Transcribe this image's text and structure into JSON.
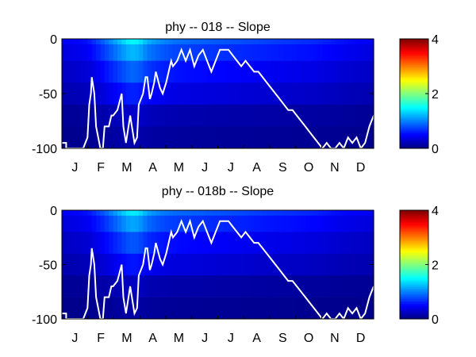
{
  "chart_data": [
    {
      "type": "heatmap",
      "title": "phy -- 018 -- Slope",
      "xlabel": "",
      "ylabel": "",
      "x_tick_labels": [
        "J",
        "F",
        "M",
        "A",
        "M",
        "J",
        "J",
        "A",
        "S",
        "O",
        "N",
        "D"
      ],
      "y_ticks": [
        0,
        -50,
        -100
      ],
      "ylim": [
        -100,
        0
      ],
      "xlim_days": [
        0,
        365
      ],
      "colorbar": {
        "ticks": [
          0,
          2,
          4
        ],
        "range": [
          0,
          4
        ],
        "colormap": "jet"
      },
      "depth_bands": [
        {
          "top": 0,
          "bottom": -5
        },
        {
          "top": -5,
          "bottom": -20
        },
        {
          "top": -20,
          "bottom": -40
        },
        {
          "top": -40,
          "bottom": -60
        },
        {
          "top": -60,
          "bottom": -80
        },
        {
          "top": -80,
          "bottom": -100
        }
      ],
      "heat_profile": {
        "days": [
          0,
          30,
          50,
          65,
          80,
          90,
          100,
          115,
          130,
          150,
          180,
          210,
          240,
          270,
          300,
          330,
          365
        ],
        "surface": [
          0.45,
          0.55,
          0.9,
          1.2,
          1.5,
          1.45,
          1.2,
          1.05,
          0.95,
          0.9,
          0.85,
          0.8,
          0.75,
          0.7,
          0.65,
          0.55,
          0.45
        ],
        "band_scale": [
          1.0,
          0.82,
          0.6,
          0.42,
          0.2,
          0.12
        ]
      },
      "line": {
        "color": "#ffffff",
        "days": [
          0,
          5,
          5,
          20,
          20,
          25,
          30,
          32,
          34,
          35,
          38,
          40,
          45,
          48,
          50,
          55,
          58,
          60,
          65,
          70,
          72,
          75,
          78,
          80,
          85,
          88,
          90,
          95,
          98,
          100,
          103,
          105,
          108,
          110,
          115,
          118,
          122,
          125,
          128,
          130,
          135,
          140,
          145,
          150,
          155,
          160,
          165,
          170,
          175,
          180,
          185,
          190,
          195,
          200,
          205,
          210,
          215,
          220,
          225,
          230,
          235,
          240,
          245,
          250,
          255,
          260,
          265,
          270,
          275,
          280,
          285,
          290,
          295,
          300,
          305,
          310,
          315,
          320,
          325,
          330,
          335,
          340,
          345,
          350,
          355,
          360,
          365
        ],
        "depths": [
          -95,
          -95,
          -100,
          -100,
          -100,
          -100,
          -90,
          -60,
          -50,
          -35,
          -50,
          -80,
          -100,
          -100,
          -80,
          -80,
          -70,
          -70,
          -65,
          -50,
          -80,
          -95,
          -80,
          -70,
          -95,
          -90,
          -60,
          -50,
          -35,
          -35,
          -55,
          -50,
          -40,
          -30,
          -45,
          -50,
          -40,
          -30,
          -20,
          -25,
          -20,
          -10,
          -20,
          -10,
          -25,
          -15,
          -10,
          -20,
          -30,
          -20,
          -10,
          -10,
          -10,
          -15,
          -20,
          -25,
          -20,
          -25,
          -30,
          -30,
          -35,
          -40,
          -45,
          -50,
          -55,
          -60,
          -65,
          -65,
          -70,
          -75,
          -80,
          -85,
          -90,
          -95,
          -100,
          -95,
          -100,
          -100,
          -95,
          -100,
          -90,
          -95,
          -90,
          -100,
          -95,
          -80,
          -70
        ]
      }
    },
    {
      "type": "heatmap",
      "title": "phy -- 018b -- Slope",
      "xlabel": "",
      "ylabel": "",
      "x_tick_labels": [
        "J",
        "F",
        "M",
        "A",
        "M",
        "J",
        "J",
        "A",
        "S",
        "O",
        "N",
        "D"
      ],
      "y_ticks": [
        0,
        -50,
        -100
      ],
      "ylim": [
        -100,
        0
      ],
      "xlim_days": [
        0,
        365
      ],
      "colorbar": {
        "ticks": [
          0,
          2,
          4
        ],
        "range": [
          0,
          4
        ],
        "colormap": "jet"
      },
      "depth_bands": [
        {
          "top": 0,
          "bottom": -5
        },
        {
          "top": -5,
          "bottom": -20
        },
        {
          "top": -20,
          "bottom": -40
        },
        {
          "top": -40,
          "bottom": -60
        },
        {
          "top": -60,
          "bottom": -80
        },
        {
          "top": -80,
          "bottom": -100
        }
      ],
      "heat_profile": {
        "days": [
          0,
          30,
          50,
          65,
          80,
          90,
          100,
          115,
          130,
          150,
          180,
          210,
          240,
          270,
          300,
          330,
          365
        ],
        "surface": [
          0.45,
          0.55,
          0.85,
          1.15,
          1.45,
          1.4,
          1.15,
          1.0,
          0.92,
          0.88,
          0.82,
          0.78,
          0.72,
          0.68,
          0.62,
          0.52,
          0.45
        ],
        "band_scale": [
          1.0,
          0.8,
          0.58,
          0.4,
          0.18,
          0.1
        ]
      },
      "line": {
        "color": "#ffffff",
        "days": [
          0,
          5,
          5,
          20,
          20,
          25,
          30,
          32,
          34,
          35,
          38,
          40,
          45,
          48,
          50,
          55,
          58,
          60,
          65,
          70,
          72,
          75,
          78,
          80,
          85,
          88,
          90,
          95,
          98,
          100,
          103,
          105,
          108,
          110,
          115,
          118,
          122,
          125,
          128,
          130,
          135,
          140,
          145,
          150,
          155,
          160,
          165,
          170,
          175,
          180,
          185,
          190,
          195,
          200,
          205,
          210,
          215,
          220,
          225,
          230,
          235,
          240,
          245,
          250,
          255,
          260,
          265,
          270,
          275,
          280,
          285,
          290,
          295,
          300,
          305,
          310,
          315,
          320,
          325,
          330,
          335,
          340,
          345,
          350,
          355,
          360,
          365
        ],
        "depths": [
          -95,
          -95,
          -100,
          -100,
          -100,
          -100,
          -90,
          -60,
          -50,
          -35,
          -50,
          -80,
          -100,
          -100,
          -80,
          -80,
          -70,
          -70,
          -65,
          -50,
          -80,
          -95,
          -80,
          -70,
          -95,
          -90,
          -60,
          -50,
          -35,
          -35,
          -55,
          -50,
          -40,
          -30,
          -45,
          -50,
          -40,
          -30,
          -20,
          -25,
          -20,
          -10,
          -20,
          -10,
          -25,
          -15,
          -10,
          -20,
          -30,
          -20,
          -10,
          -10,
          -10,
          -15,
          -20,
          -25,
          -20,
          -25,
          -30,
          -30,
          -35,
          -40,
          -45,
          -50,
          -55,
          -60,
          -65,
          -65,
          -70,
          -75,
          -80,
          -85,
          -90,
          -95,
          -100,
          -95,
          -100,
          -100,
          -95,
          -100,
          -90,
          -95,
          -90,
          -100,
          -95,
          -80,
          -70
        ]
      }
    }
  ]
}
